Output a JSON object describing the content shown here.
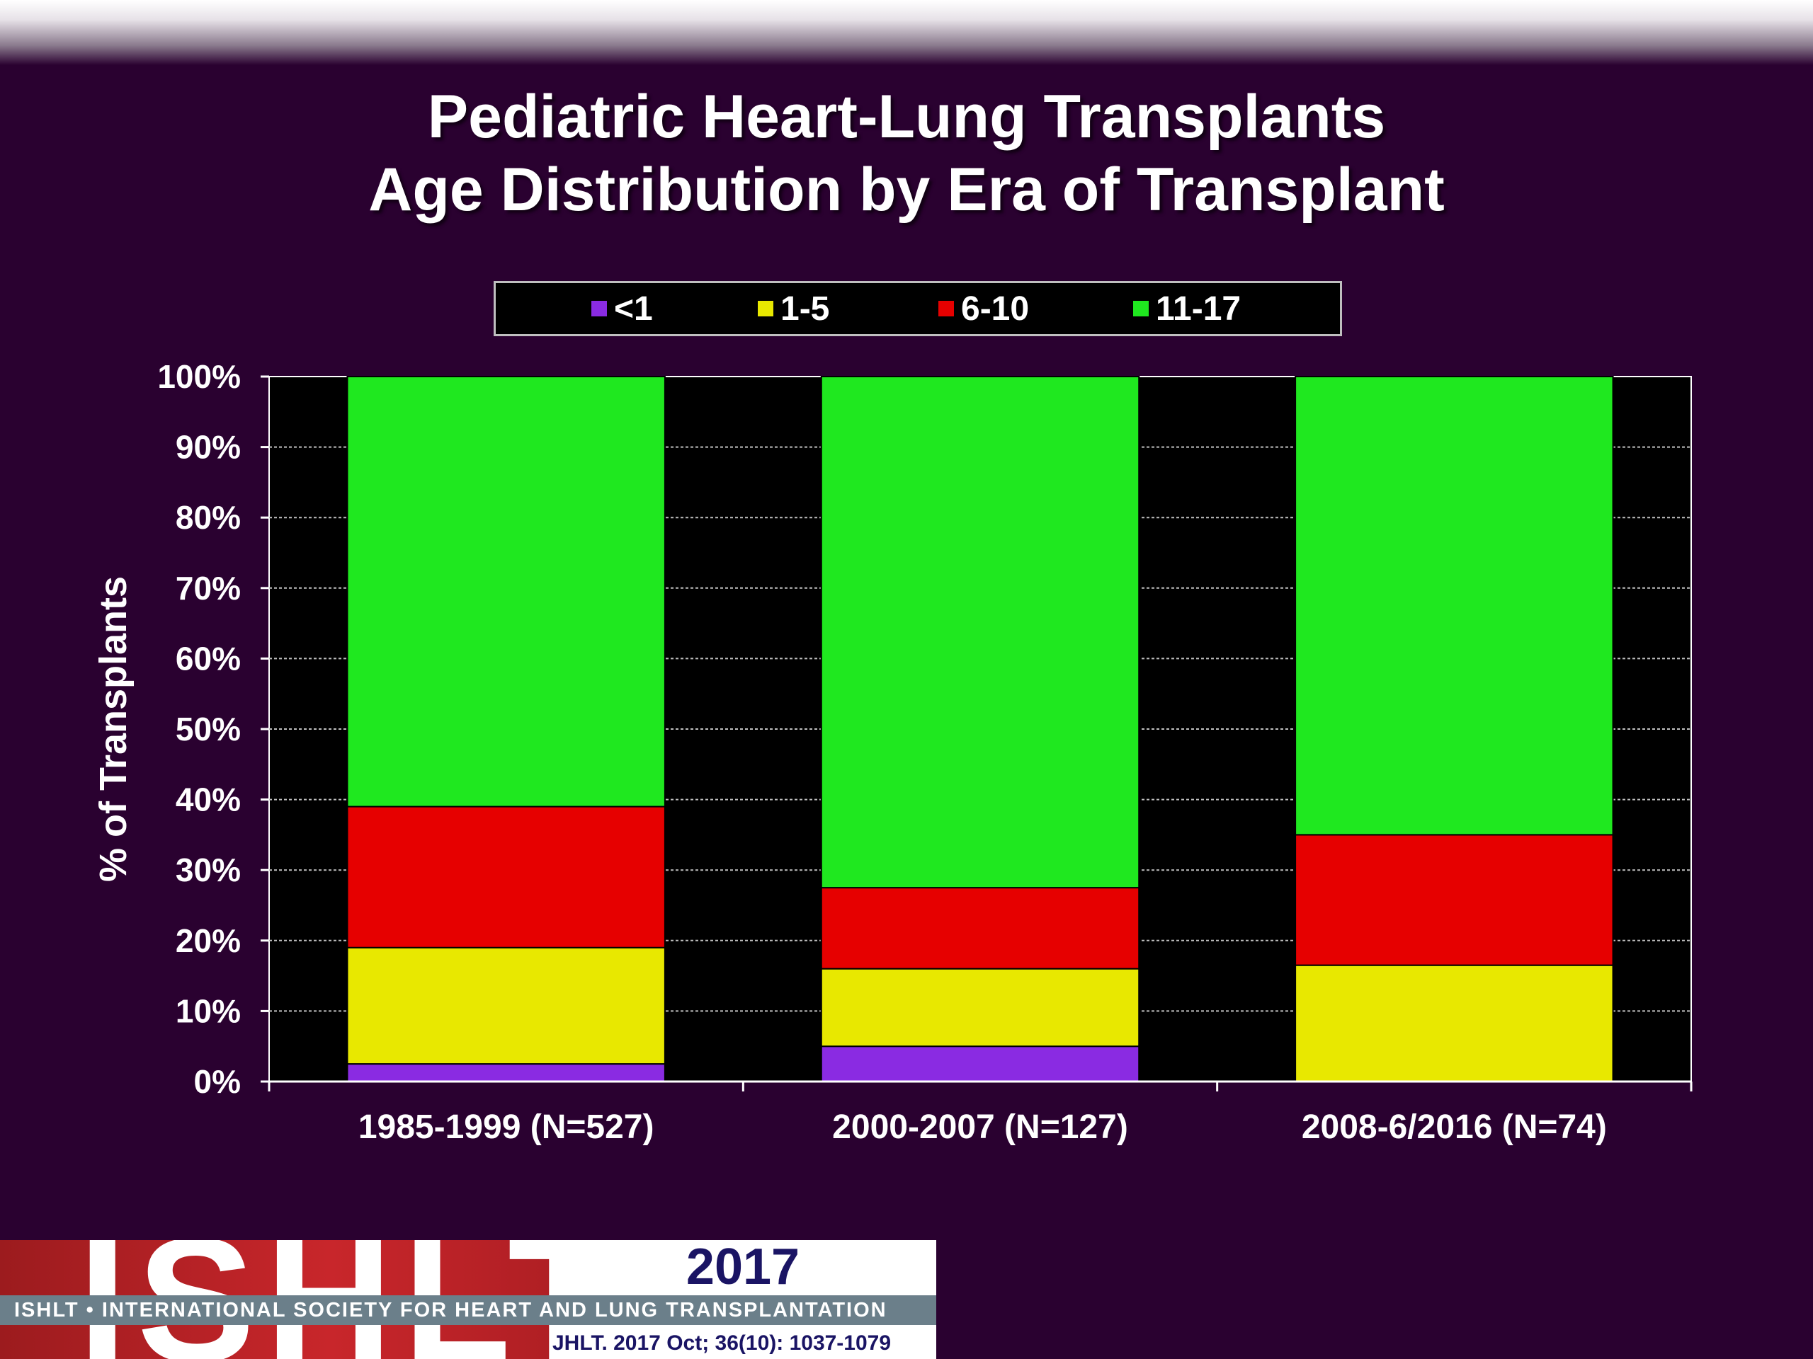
{
  "slide": {
    "title_line1": "Pediatric Heart-Lung Transplants",
    "title_line2": "Age Distribution by Era of Transplant"
  },
  "legend": [
    {
      "label": "<1",
      "color": "#8a2be2"
    },
    {
      "label": "1-5",
      "color": "#e8e800"
    },
    {
      "label": "6-10",
      "color": "#e60000"
    },
    {
      "label": "11-17",
      "color": "#1fe81f"
    }
  ],
  "chart_data": {
    "type": "bar",
    "stacked": true,
    "title": "Pediatric Heart-Lung Transplants Age Distribution by Era of Transplant",
    "ylabel": "% of Transplants",
    "xlabel": "",
    "ylim": [
      0,
      100
    ],
    "yticks": [
      "0%",
      "10%",
      "20%",
      "30%",
      "40%",
      "50%",
      "60%",
      "70%",
      "80%",
      "90%",
      "100%"
    ],
    "grid": true,
    "legend_position": "top",
    "categories": [
      "1985-1999 (N=527)",
      "2000-2007 (N=127)",
      "2008-6/2016 (N=74)"
    ],
    "series": [
      {
        "name": "<1",
        "color": "#8a2be2",
        "values": [
          2.5,
          5,
          0
        ]
      },
      {
        "name": "1-5",
        "color": "#e8e800",
        "values": [
          16.5,
          11,
          16.5
        ]
      },
      {
        "name": "6-10",
        "color": "#e60000",
        "values": [
          20,
          11.5,
          18.5
        ]
      },
      {
        "name": "11-17",
        "color": "#1fe81f",
        "values": [
          61,
          72.5,
          65
        ]
      }
    ]
  },
  "footer": {
    "logo_text": "ISHLT",
    "year": "2017",
    "society": "ISHLT • INTERNATIONAL SOCIETY FOR HEART AND LUNG TRANSPLANTATION",
    "citation": "JHLT. 2017 Oct; 36(10): 1037-1079"
  }
}
